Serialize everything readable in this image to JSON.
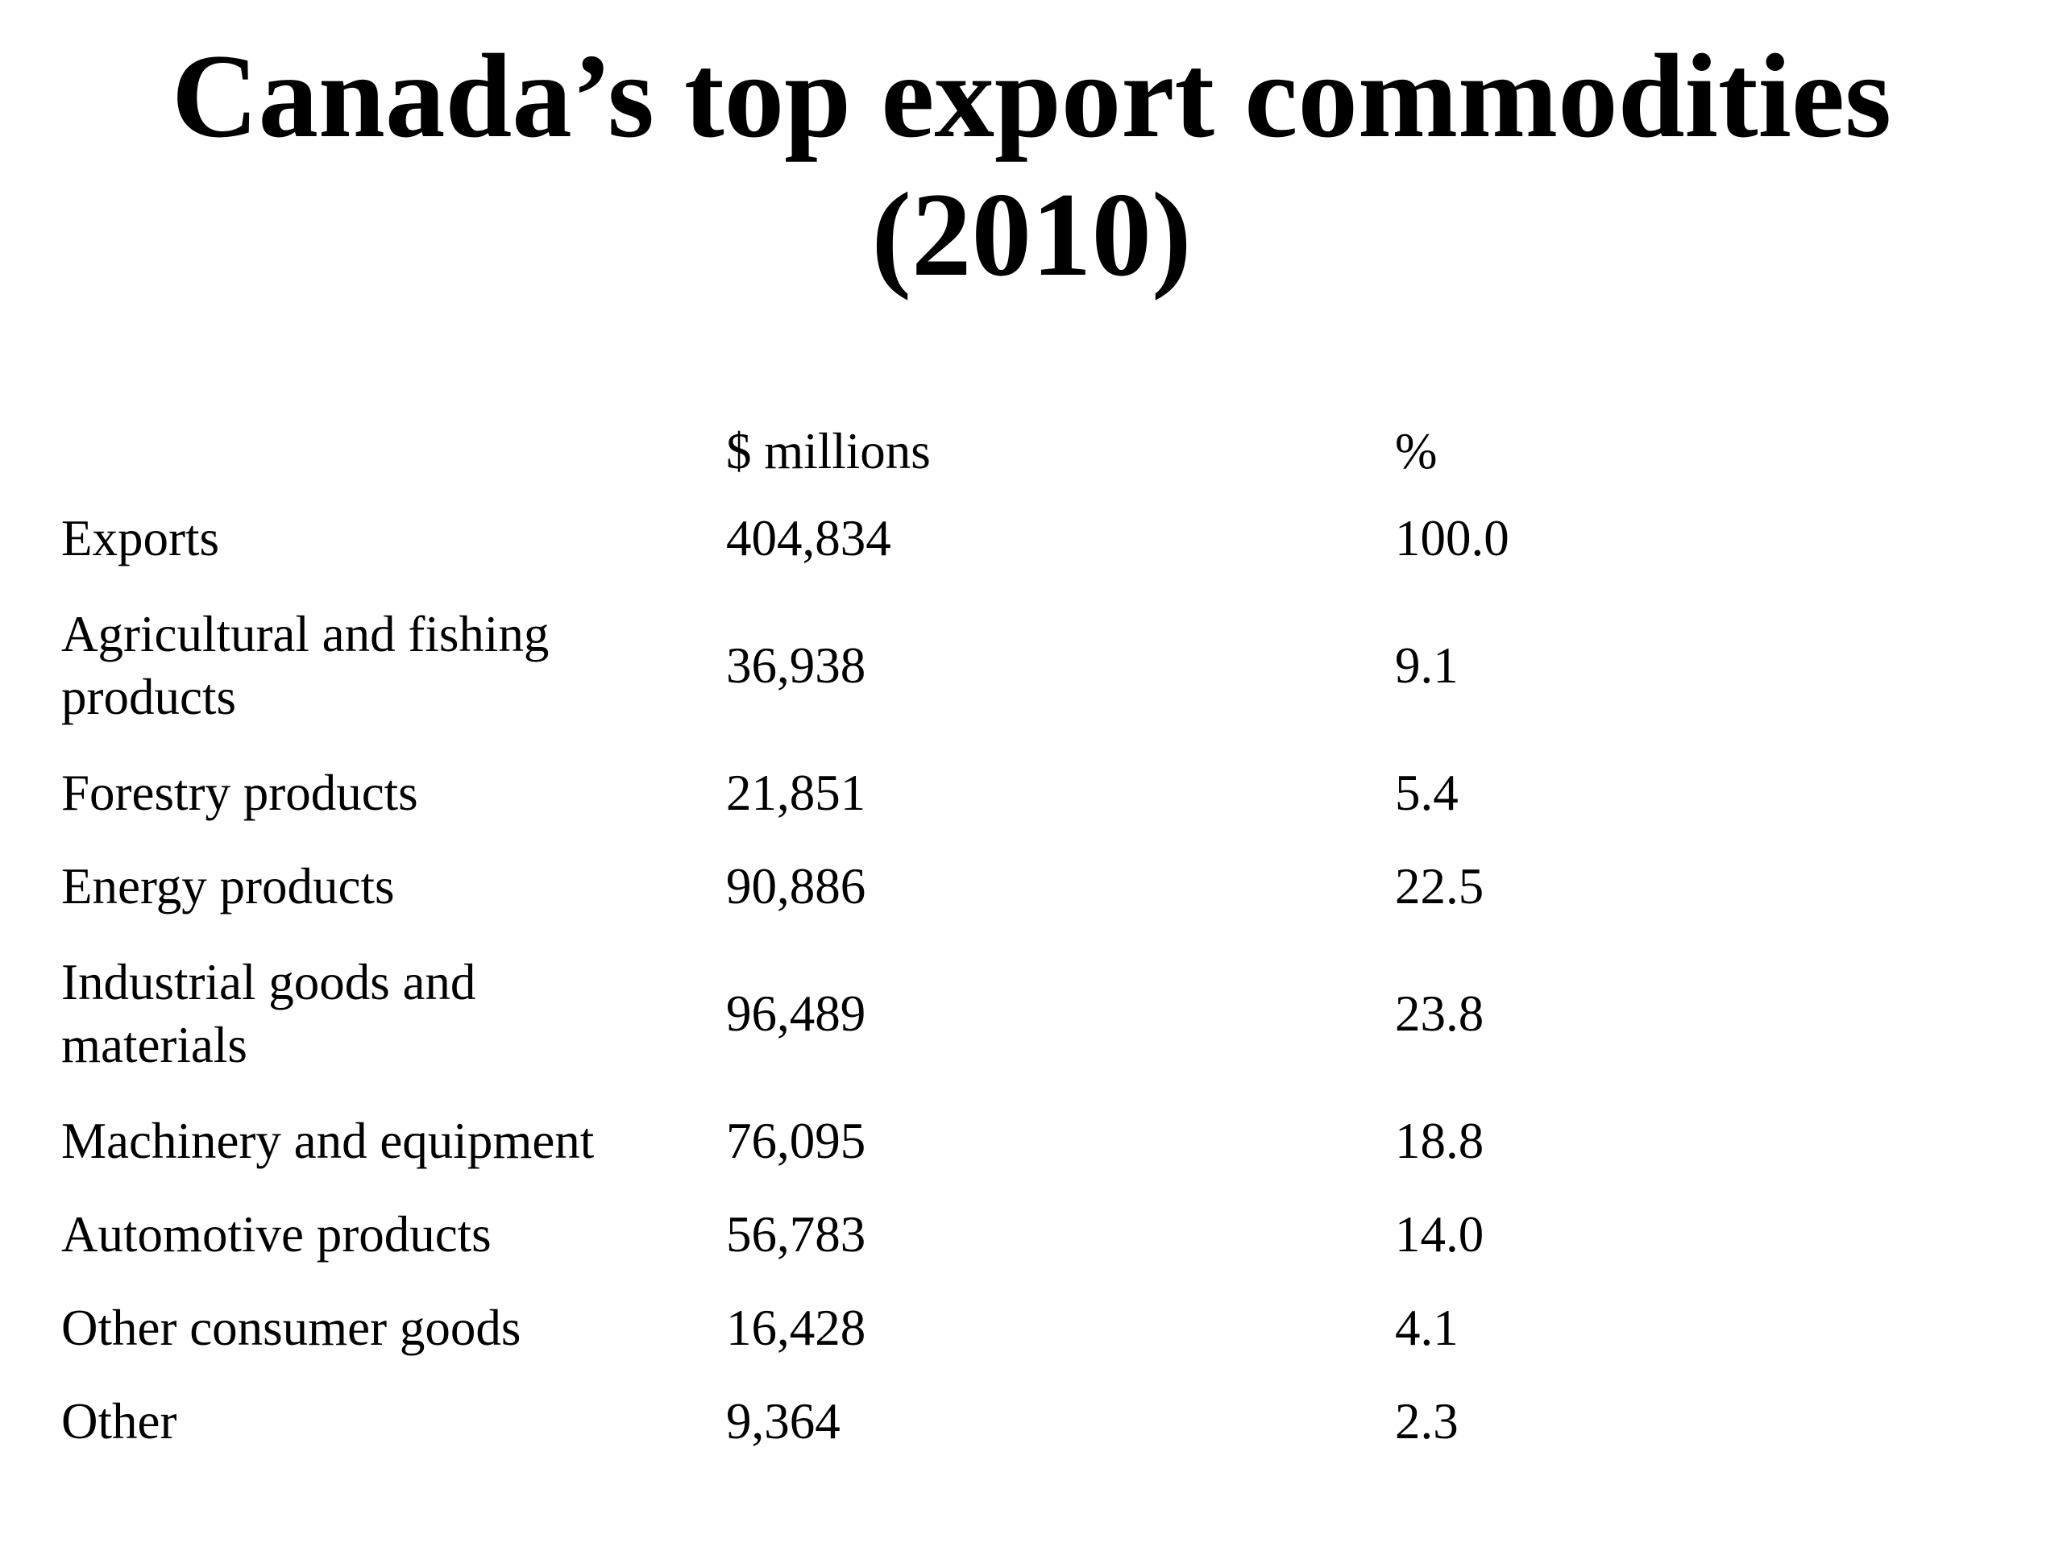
{
  "title": {
    "line1": "Canada’s top export commodities",
    "line2": "(2010)"
  },
  "table": {
    "headers": {
      "label": "",
      "value": "$ millions",
      "pct": "%"
    },
    "rows": [
      {
        "label": "Exports",
        "value": "404,834",
        "pct": "100.0"
      },
      {
        "label": "Agricultural and fishing products",
        "value": "36,938",
        "pct": "9.1"
      },
      {
        "label": "Forestry products",
        "value": "21,851",
        "pct": "5.4"
      },
      {
        "label": "Energy products",
        "value": "90,886",
        "pct": "22.5"
      },
      {
        "label": "Industrial goods and materials",
        "value": "96,489",
        "pct": "23.8"
      },
      {
        "label": "Machinery and equipment",
        "value": "76,095",
        "pct": "18.8"
      },
      {
        "label": "Automotive products",
        "value": "56,783",
        "pct": "14.0"
      },
      {
        "label": "Other consumer goods",
        "value": "16,428",
        "pct": "4.1"
      },
      {
        "label": "Other",
        "value": "9,364",
        "pct": "2.3"
      }
    ]
  }
}
